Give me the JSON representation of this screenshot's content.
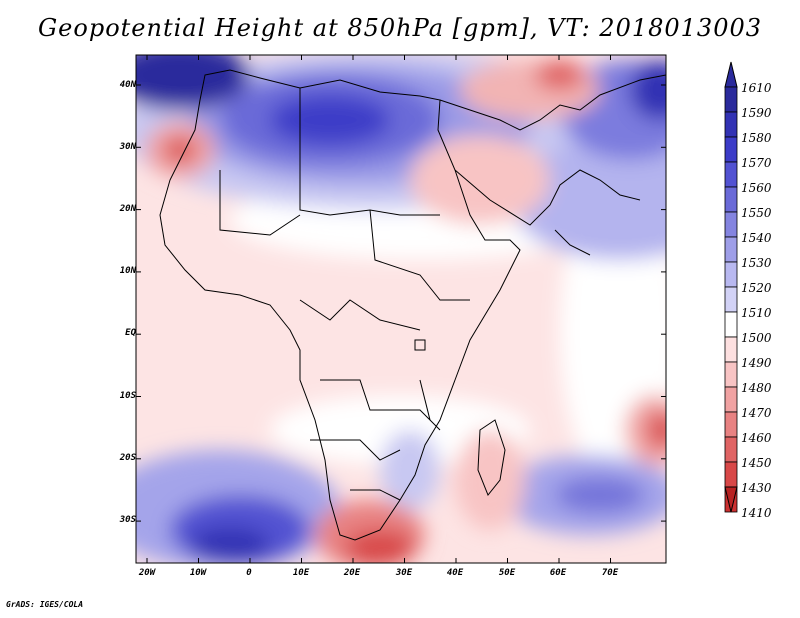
{
  "title": "Geopotential Height at 850hPa [gpm], VT: 2018013003",
  "footer": "GrADS: IGES/COLA",
  "lat_labels": [
    "40N",
    "30N",
    "20N",
    "10N",
    "EQ",
    "10S",
    "20S",
    "30S"
  ],
  "lon_labels": [
    "20W",
    "10W",
    "0",
    "10E",
    "20E",
    "30E",
    "40E",
    "50E",
    "60E",
    "70E"
  ],
  "colorbar": {
    "labels": [
      "1610",
      "1590",
      "1580",
      "1570",
      "1560",
      "1550",
      "1540",
      "1530",
      "1520",
      "1510",
      "1500",
      "1490",
      "1480",
      "1470",
      "1460",
      "1450",
      "1430",
      "1410"
    ],
    "colors": [
      "#2a2a9c",
      "#3232b4",
      "#3c3cc8",
      "#5252d2",
      "#6a6ad8",
      "#8484e0",
      "#9e9ee8",
      "#b8b8f0",
      "#d2d2f6",
      "#ffffff",
      "#fde0e0",
      "#f8c4c4",
      "#f0a2a2",
      "#e88282",
      "#e06464",
      "#d84848",
      "#cc3030",
      "#b82222"
    ]
  },
  "colors": {
    "land_border": "#000000",
    "frame": "#000000"
  }
}
